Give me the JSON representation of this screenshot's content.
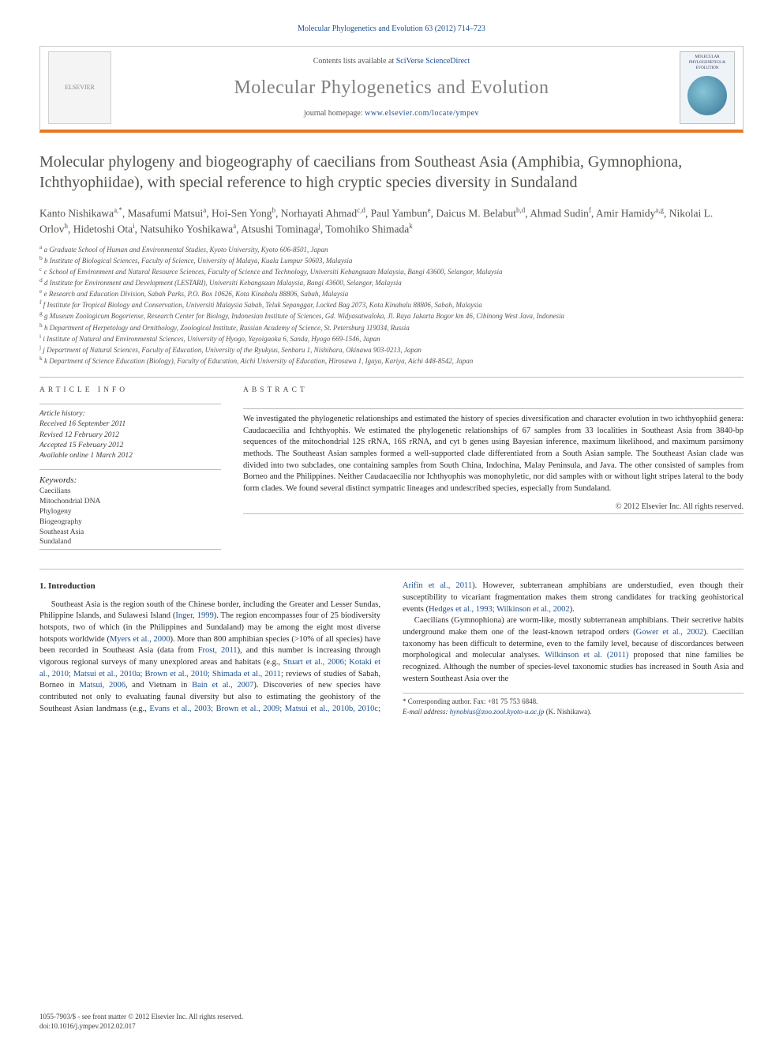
{
  "top_citation": "Molecular Phylogenetics and Evolution 63 (2012) 714–723",
  "header": {
    "contents_prefix": "Contents lists available at ",
    "contents_link": "SciVerse ScienceDirect",
    "journal_title": "Molecular Phylogenetics and Evolution",
    "homepage_prefix": "journal homepage: ",
    "homepage_url": "www.elsevier.com/locate/ympev",
    "elsevier_label": "ELSEVIER",
    "cover_label": "MOLECULAR PHYLOGENETICS & EVOLUTION"
  },
  "article_title": "Molecular phylogeny and biogeography of caecilians from Southeast Asia (Amphibia, Gymnophiona, Ichthyophiidae), with special reference to high cryptic species diversity in Sundaland",
  "authors_line": "Kanto Nishikawa a,*, Masafumi Matsui a, Hoi-Sen Yong b, Norhayati Ahmad c,d, Paul Yambun e, Daicus M. Belabut b,d, Ahmad Sudin f, Amir Hamidy a,g, Nikolai L. Orlov h, Hidetoshi Ota i, Natsuhiko Yoshikawa a, Atsushi Tominaga j, Tomohiko Shimada k",
  "affiliations": [
    "a Graduate School of Human and Environmental Studies, Kyoto University, Kyoto 606-8501, Japan",
    "b Institute of Biological Sciences, Faculty of Science, University of Malaya, Kuala Lumpur 50603, Malaysia",
    "c School of Environment and Natural Resource Sciences, Faculty of Science and Technology, Universiti Kebangsaan Malaysia, Bangi 43600, Selangor, Malaysia",
    "d Institute for Environment and Development (LESTARI), Universiti Kebangsaan Malaysia, Bangi 43600, Selangor, Malaysia",
    "e Research and Education Division, Sabah Parks, P.O. Box 10626, Kota Kinabalu 88806, Sabah, Malaysia",
    "f Institute for Tropical Biology and Conservation, Universiti Malaysia Sabah, Teluk Sepanggar, Locked Bag 2073, Kota Kinabalu 88806, Sabah, Malaysia",
    "g Museum Zoologicum Bogoriense, Research Center for Biology, Indonesian Institute of Sciences, Gd. Widyasatwaloka, Jl. Raya Jakarta Bogor km 46, Cibinong West Java, Indonesia",
    "h Department of Herpetology and Ornithology, Zoological Institute, Russian Academy of Science, St. Petersburg 119034, Russia",
    "i Institute of Natural and Environmental Sciences, University of Hyogo, Yayoigaoka 6, Sanda, Hyogo 669-1546, Japan",
    "j Department of Natural Sciences, Faculty of Education, University of the Ryukyus, Senbaru 1, Nishihara, Okinawa 903-0213, Japan",
    "k Department of Science Education (Biology), Faculty of Education, Aichi University of Education, Hirosawa 1, Igaya, Kariya, Aichi 448-8542, Japan"
  ],
  "article_info": {
    "heading": "ARTICLE INFO",
    "history_label": "Article history:",
    "received": "Received 16 September 2011",
    "revised": "Revised 12 February 2012",
    "accepted": "Accepted 15 February 2012",
    "online": "Available online 1 March 2012",
    "keywords_label": "Keywords:",
    "keywords": [
      "Caecilians",
      "Mitochondrial DNA",
      "Phylogeny",
      "Biogeography",
      "Southeast Asia",
      "Sundaland"
    ]
  },
  "abstract": {
    "heading": "ABSTRACT",
    "text": "We investigated the phylogenetic relationships and estimated the history of species diversification and character evolution in two ichthyophiid genera: Caudacaecilia and Ichthyophis. We estimated the phylogenetic relationships of 67 samples from 33 localities in Southeast Asia from 3840-bp sequences of the mitochondrial 12S rRNA, 16S rRNA, and cyt b genes using Bayesian inference, maximum likelihood, and maximum parsimony methods. The Southeast Asian samples formed a well-supported clade differentiated from a South Asian sample. The Southeast Asian clade was divided into two subclades, one containing samples from South China, Indochina, Malay Peninsula, and Java. The other consisted of samples from Borneo and the Philippines. Neither Caudacaecilia nor Ichthyophis was monophyletic, nor did samples with or without light stripes lateral to the body form clades. We found several distinct sympatric lineages and undescribed species, especially from Sundaland.",
    "copyright": "© 2012 Elsevier Inc. All rights reserved."
  },
  "section1_heading": "1. Introduction",
  "para1_a": "Southeast Asia is the region south of the Chinese border, including the Greater and Lesser Sundas, Philippine Islands, and Sulawesi Island (",
  "para1_cite1": "Inger, 1999",
  "para1_b": "). The region encompasses four of 25 biodiversity hotspots, two of which (in the Philippines and Sundaland) may be among the eight most diverse hotspots worldwide (",
  "para1_cite2": "Myers et al., 2000",
  "para1_c": "). More than 800 amphibian species (>10% of all species) have been recorded in Southeast Asia (data from ",
  "para1_cite3": "Frost, 2011",
  "para1_d": "), and this number is increasing through vigorous regional surveys of many unexplored areas and habitats (e.g., ",
  "para1_cite4": "Stuart et al., 2006; Kotaki et al., 2010; Matsui et al., 2010a; Brown et al., 2010; Shimada et al., 2011",
  "para1_e": "; reviews of studies of Sabah, Borneo in ",
  "para1_cite5": "Matsui, 2006",
  "para1_f": ", and Vietnam in ",
  "para1_cite6": "Bain et al., 2007",
  "para1_g": "). Discoveries of new species have contributed not only to evaluating faunal diversity but also to estimating the geohistory of the Southeast Asian landmass (e.g., ",
  "para1_cite7": "Evans et al., 2003; Brown et al., 2009; Matsui et al., 2010b, 2010c; Arifin et al., 2011",
  "para1_h": "). However, subterranean amphibians are understudied, even though their susceptibility to vicariant fragmentation makes them strong candidates for tracking geohistorical events (",
  "para1_cite8": "Hedges et al., 1993; Wilkinson et al., 2002",
  "para1_i": ").",
  "para2_a": "Caecilians (Gymnophiona) are worm-like, mostly subterranean amphibians. Their secretive habits underground make them one of the least-known tetrapod orders (",
  "para2_cite1": "Gower et al., 2002",
  "para2_b": "). Caecilian taxonomy has been difficult to determine, even to the family level, because of discordances between morphological and molecular analyses. ",
  "para2_cite2": "Wilkinson et al. (2011)",
  "para2_c": " proposed that nine families be recognized. Although the number of species-level taxonomic studies has increased in South Asia and western Southeast Asia over the",
  "corr": {
    "star": "* Corresponding author. Fax: +81 75 753 6848.",
    "label": "E-mail address:",
    "email": "hynobius@zoo.zool.kyoto-u.ac.jp",
    "who": "(K. Nishikawa)."
  },
  "footer": {
    "line1": "1055-7903/$ - see front matter © 2012 Elsevier Inc. All rights reserved.",
    "line2": "doi:10.1016/j.ympev.2012.02.017"
  },
  "colors": {
    "link": "#1a4f8f",
    "orange_bar": "#e87722",
    "heading_gray": "#54544e",
    "border": "#bcbcbc"
  }
}
